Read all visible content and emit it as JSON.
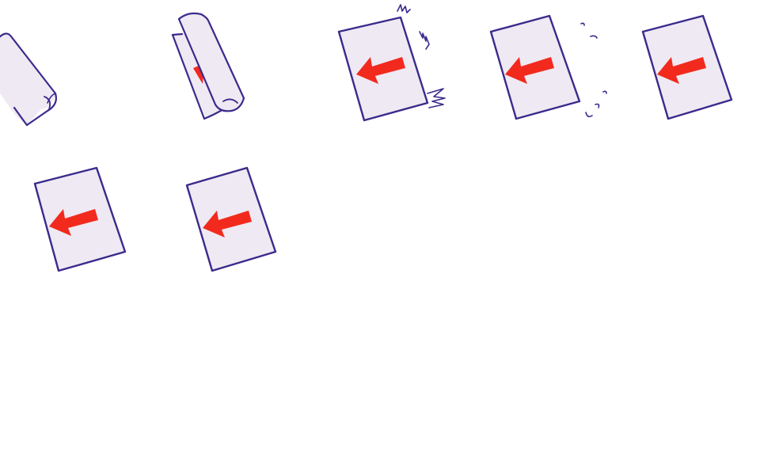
{
  "sprite_sheet": {
    "colors": {
      "paper": "#efe9f3",
      "paper_shadow": "#e2d9ea",
      "outline": "#3b2a8c",
      "arrow": "#f22a1e",
      "background": "#ffffff"
    },
    "frames": [
      {
        "name": "paper-curled-frame",
        "icon": "curled-paper-icon",
        "state": "curled"
      },
      {
        "name": "paper-unrolling-frame",
        "icon": "unrolling-paper-icon",
        "state": "unrolling"
      },
      {
        "name": "paper-snap-frame",
        "icon": "paper-arrow-left-icon",
        "state": "snap"
      },
      {
        "name": "paper-settle-frame",
        "icon": "paper-arrow-left-icon",
        "state": "settle"
      },
      {
        "name": "paper-flat-frame-1",
        "icon": "paper-arrow-left-icon",
        "state": "flat"
      },
      {
        "name": "paper-flat-frame-2",
        "icon": "paper-arrow-left-icon",
        "state": "flat"
      },
      {
        "name": "paper-flat-frame-3",
        "icon": "paper-arrow-left-icon",
        "state": "flat"
      }
    ]
  }
}
